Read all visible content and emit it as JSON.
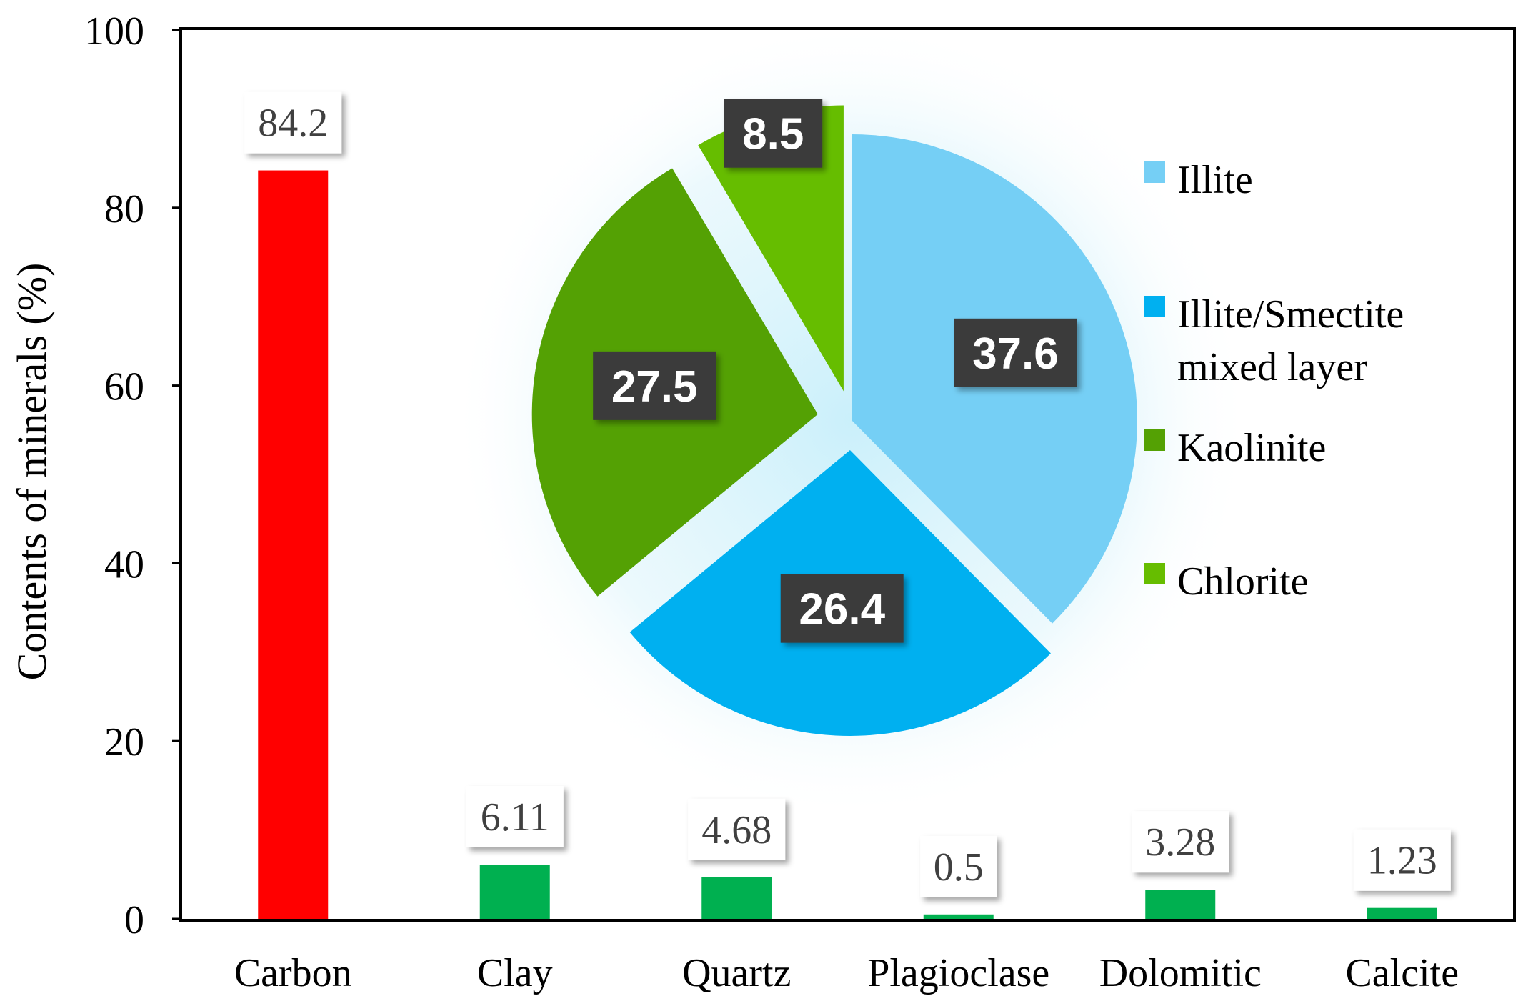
{
  "chart_data": [
    {
      "type": "bar",
      "categories": [
        "Carbon",
        "Clay",
        "Quartz",
        "Plagioclase",
        "Dolomitic",
        "Calcite"
      ],
      "values": [
        84.2,
        6.11,
        4.68,
        0.5,
        3.28,
        1.23
      ],
      "data_labels": [
        "84.2",
        "6.11",
        "4.68",
        "0.5",
        "3.28",
        "1.23"
      ],
      "colors": [
        "#ff0000",
        "#00b050",
        "#00b050",
        "#00b050",
        "#00b050",
        "#00b050"
      ],
      "ylabel": "Contents of minerals (%)",
      "ylim": [
        0,
        100
      ],
      "yticks": [
        "0",
        "20",
        "40",
        "60",
        "80",
        "100"
      ],
      "grid": false
    },
    {
      "type": "pie",
      "labels": [
        "Illite",
        "Illite/Smectite mixed layer",
        "Kaolinite",
        "Chlorite"
      ],
      "legend_lines": [
        [
          "Illite"
        ],
        [
          "Illite/Smectite",
          "mixed layer"
        ],
        [
          "Kaolinite"
        ],
        [
          "Chlorite"
        ]
      ],
      "values": [
        37.6,
        26.4,
        27.5,
        8.5
      ],
      "data_labels": [
        "37.6",
        "26.4",
        "27.5",
        "8.5"
      ],
      "colors": [
        "#75cff5",
        "#00b0f0",
        "#54a104",
        "#66bd00"
      ],
      "legend_position": "right",
      "exploded": true
    }
  ]
}
